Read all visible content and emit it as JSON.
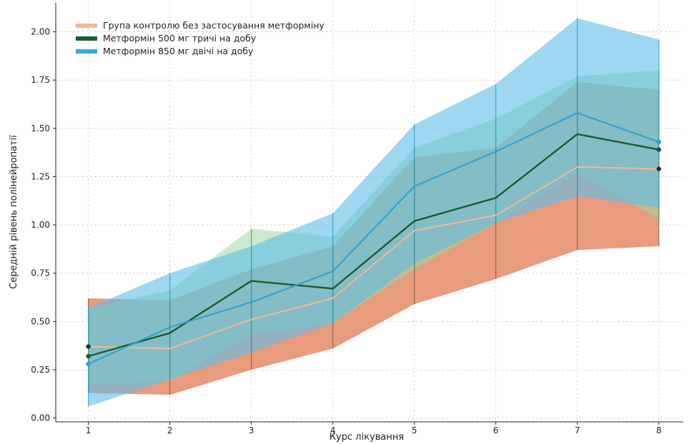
{
  "chart_data": {
    "type": "line",
    "title": "",
    "xlabel": "Курс лікування",
    "ylabel": "Середній рівень полінейропатії",
    "x": [
      1,
      2,
      3,
      4,
      5,
      6,
      7,
      8
    ],
    "xlim": [
      0.6,
      8.3
    ],
    "ylim": [
      -0.02,
      2.15
    ],
    "y_ticks": [
      0.0,
      0.25,
      0.5,
      0.75,
      1.0,
      1.25,
      1.5,
      1.75,
      2.0
    ],
    "y_tick_labels": [
      "0.00",
      "0.25",
      "0.50",
      "0.75",
      "1.00",
      "1.25",
      "1.50",
      "1.75",
      "2.00"
    ],
    "x_tick_labels": [
      "1",
      "2",
      "3",
      "4",
      "5",
      "6",
      "7",
      "8"
    ],
    "grid": true,
    "legend_position": "top-left",
    "series": [
      {
        "name": "Група контролю без застосування метформіну",
        "color": "#f2b896",
        "band_color": "#e07a52",
        "values": [
          0.37,
          0.36,
          0.51,
          0.62,
          0.97,
          1.05,
          1.3,
          1.29
        ],
        "lower": [
          0.13,
          0.12,
          0.25,
          0.36,
          0.59,
          0.72,
          0.87,
          0.89
        ],
        "upper": [
          0.62,
          0.61,
          0.77,
          0.89,
          1.35,
          1.4,
          1.74,
          1.7
        ]
      },
      {
        "name": "Метформін 500 мг тричі на добу",
        "color": "#1d5a2e",
        "band_color": "#9fd8a6",
        "values": [
          0.32,
          0.44,
          0.71,
          0.67,
          1.02,
          1.14,
          1.47,
          1.39
        ],
        "lower": [
          0.17,
          0.19,
          0.43,
          0.49,
          0.77,
          1.01,
          1.27,
          1.03
        ],
        "upper": [
          0.57,
          0.66,
          0.98,
          0.94,
          1.4,
          1.55,
          1.77,
          1.8
        ]
      },
      {
        "name": "Метформін 850 мг двічі на добу",
        "color": "#2f9ed0",
        "band_color": "#5cbde8",
        "values": [
          0.28,
          0.47,
          0.6,
          0.76,
          1.2,
          1.38,
          1.58,
          1.43
        ],
        "lower": [
          0.06,
          0.2,
          0.34,
          0.49,
          0.8,
          1.01,
          1.15,
          1.09
        ],
        "upper": [
          0.57,
          0.75,
          0.89,
          1.06,
          1.52,
          1.73,
          2.07,
          1.96
        ]
      }
    ]
  }
}
